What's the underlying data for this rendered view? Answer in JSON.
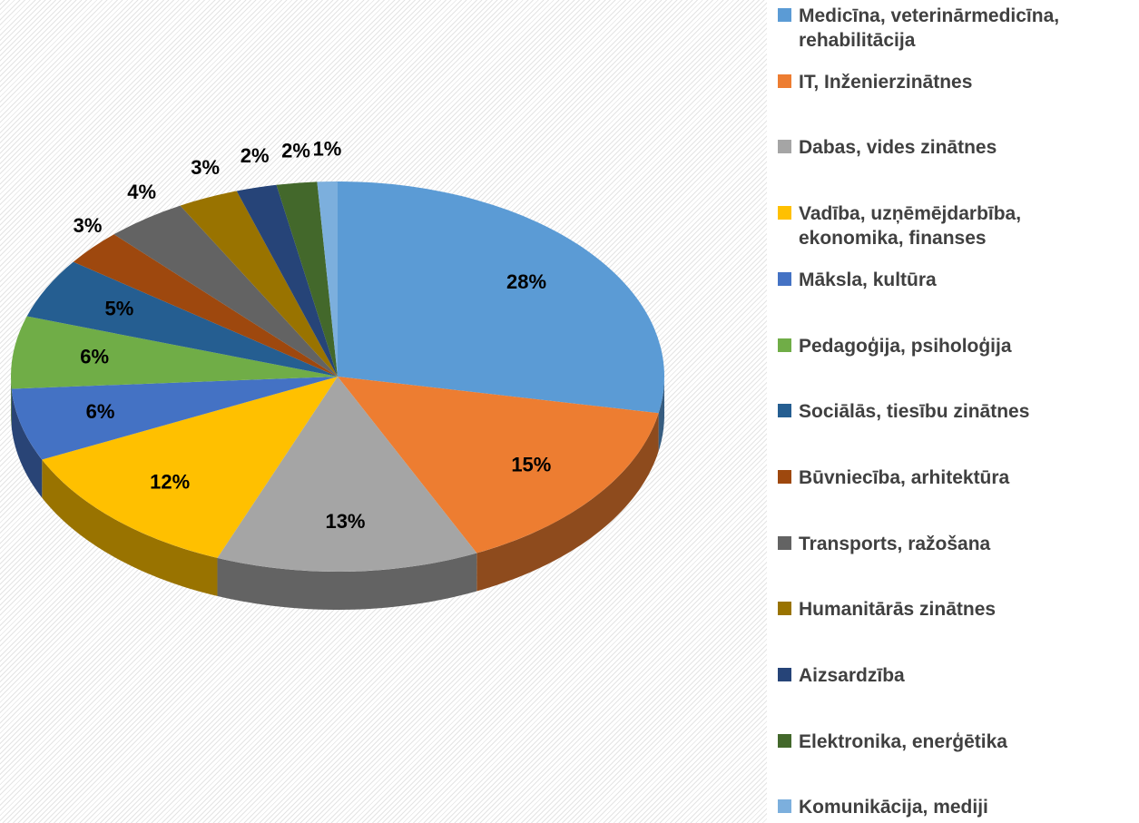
{
  "chart_data": {
    "type": "pie",
    "categories": [
      "Medicīna, veterinārmedicīna, rehabilitācija",
      "IT, Inženierzinātnes",
      "Dabas, vides zinātnes",
      "Vadība, uzņēmējdarbība, ekonomika, finanses",
      "Māksla, kultūra",
      "Pedagoģija, psiholoģija",
      "Sociālās, tiesību zinātnes",
      "Būvniecība, arhitektūra",
      "Transports, ražošana",
      "Humanitārās zinātnes",
      "Aizsardzība",
      "Elektronika, enerģētika",
      "Komunikācija, mediji"
    ],
    "values": [
      28,
      15,
      13,
      12,
      6,
      6,
      5,
      3,
      4,
      3,
      2,
      2,
      1
    ],
    "value_labels": [
      "28%",
      "15%",
      "13%",
      "12%",
      "6%",
      "6%",
      "5%",
      "3%",
      "4%",
      "3%",
      "2%",
      "2%",
      "1%"
    ],
    "colors": [
      "#5b9bd5",
      "#ed7d31",
      "#a5a5a5",
      "#ffc000",
      "#4472c4",
      "#70ad47",
      "#255e91",
      "#9e480e",
      "#636363",
      "#997300",
      "#264478",
      "#43682b",
      "#7cafdd"
    ],
    "legend": "right"
  }
}
